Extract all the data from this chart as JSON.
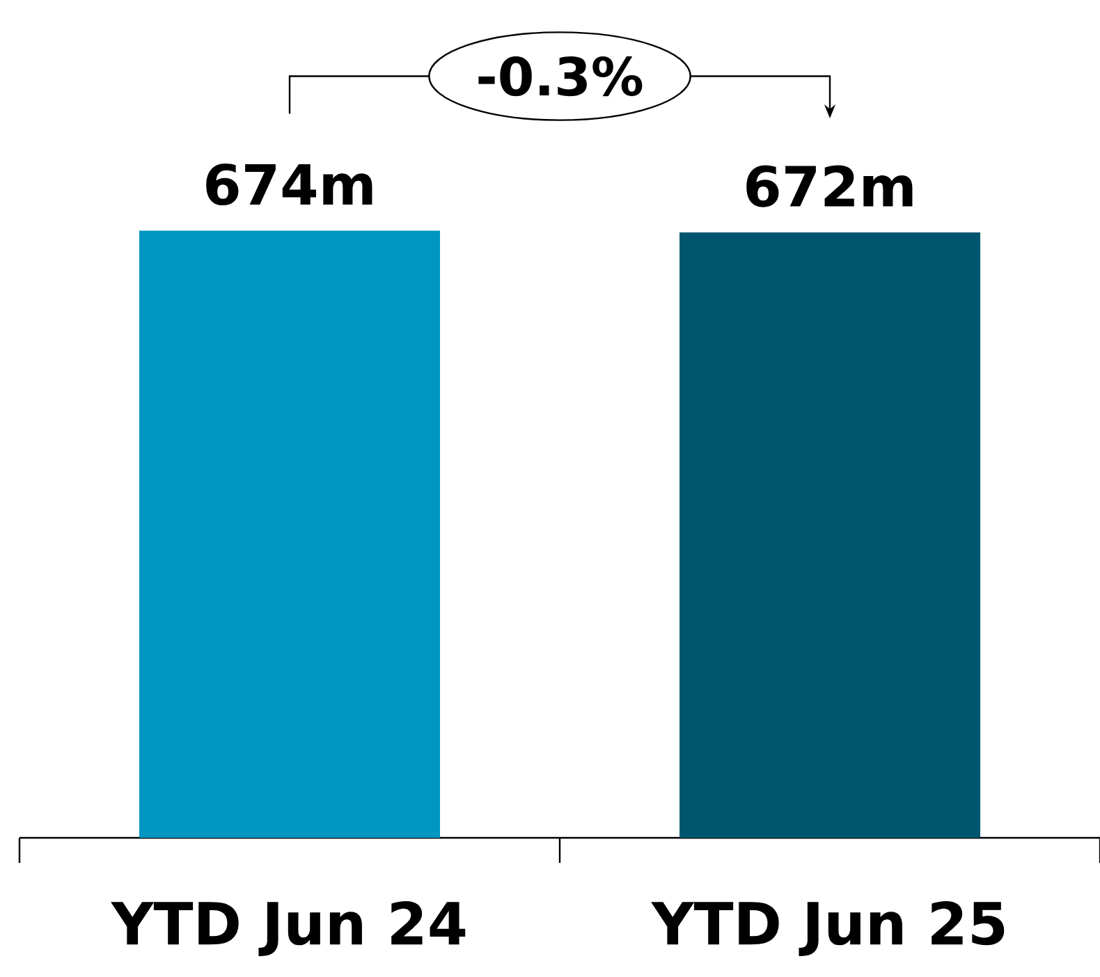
{
  "chart_data": {
    "type": "bar",
    "categories": [
      "YTD Jun 24",
      "YTD Jun 25"
    ],
    "values": [
      674,
      672
    ],
    "colors": [
      "#0096c2",
      "#00566f"
    ],
    "value_labels": [
      "674m",
      "672m"
    ],
    "tick_labels": "x",
    "annotations": [
      "-0.3%"
    ]
  }
}
